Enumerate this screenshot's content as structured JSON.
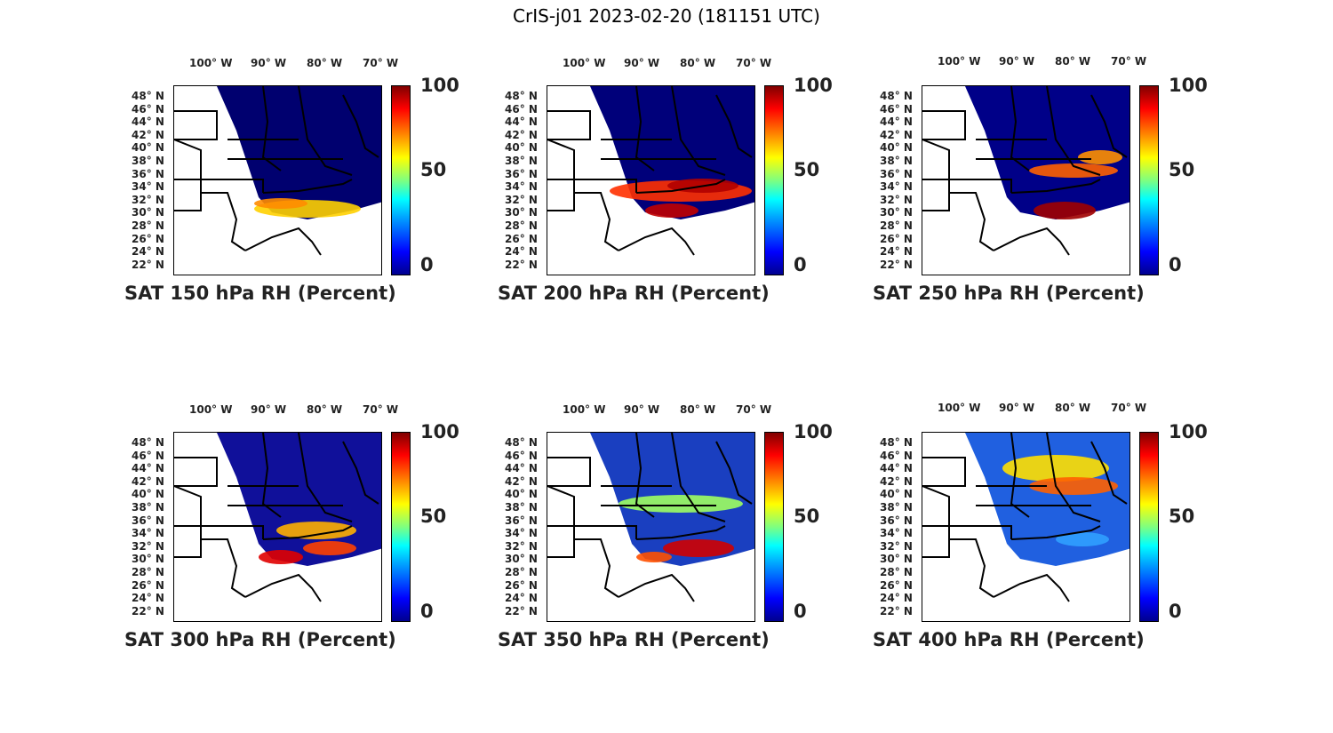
{
  "figure": {
    "title": "CrIS-j01 2023-02-20 (181151 UTC)"
  },
  "axes": {
    "lon_ticks": [
      "100° W",
      "90° W",
      "80° W",
      "70° W"
    ],
    "lat_ticks": [
      "48° N",
      "46° N",
      "44° N",
      "42° N",
      "40° N",
      "38° N",
      "36° N",
      "34° N",
      "32° N",
      "30° N",
      "28° N",
      "26° N",
      "24° N",
      "22° N"
    ]
  },
  "colorbar": {
    "min": "0",
    "mid": "50",
    "max": "100"
  },
  "panels": [
    {
      "title": "SAT 150 hPa RH (Percent)"
    },
    {
      "title": "SAT 200 hPa RH (Percent)"
    },
    {
      "title": "SAT 250 hPa RH (Percent)"
    },
    {
      "title": "SAT 300 hPa RH (Percent)"
    },
    {
      "title": "SAT 350 hPa RH (Percent)"
    },
    {
      "title": "SAT 400 hPa RH (Percent)"
    }
  ]
}
